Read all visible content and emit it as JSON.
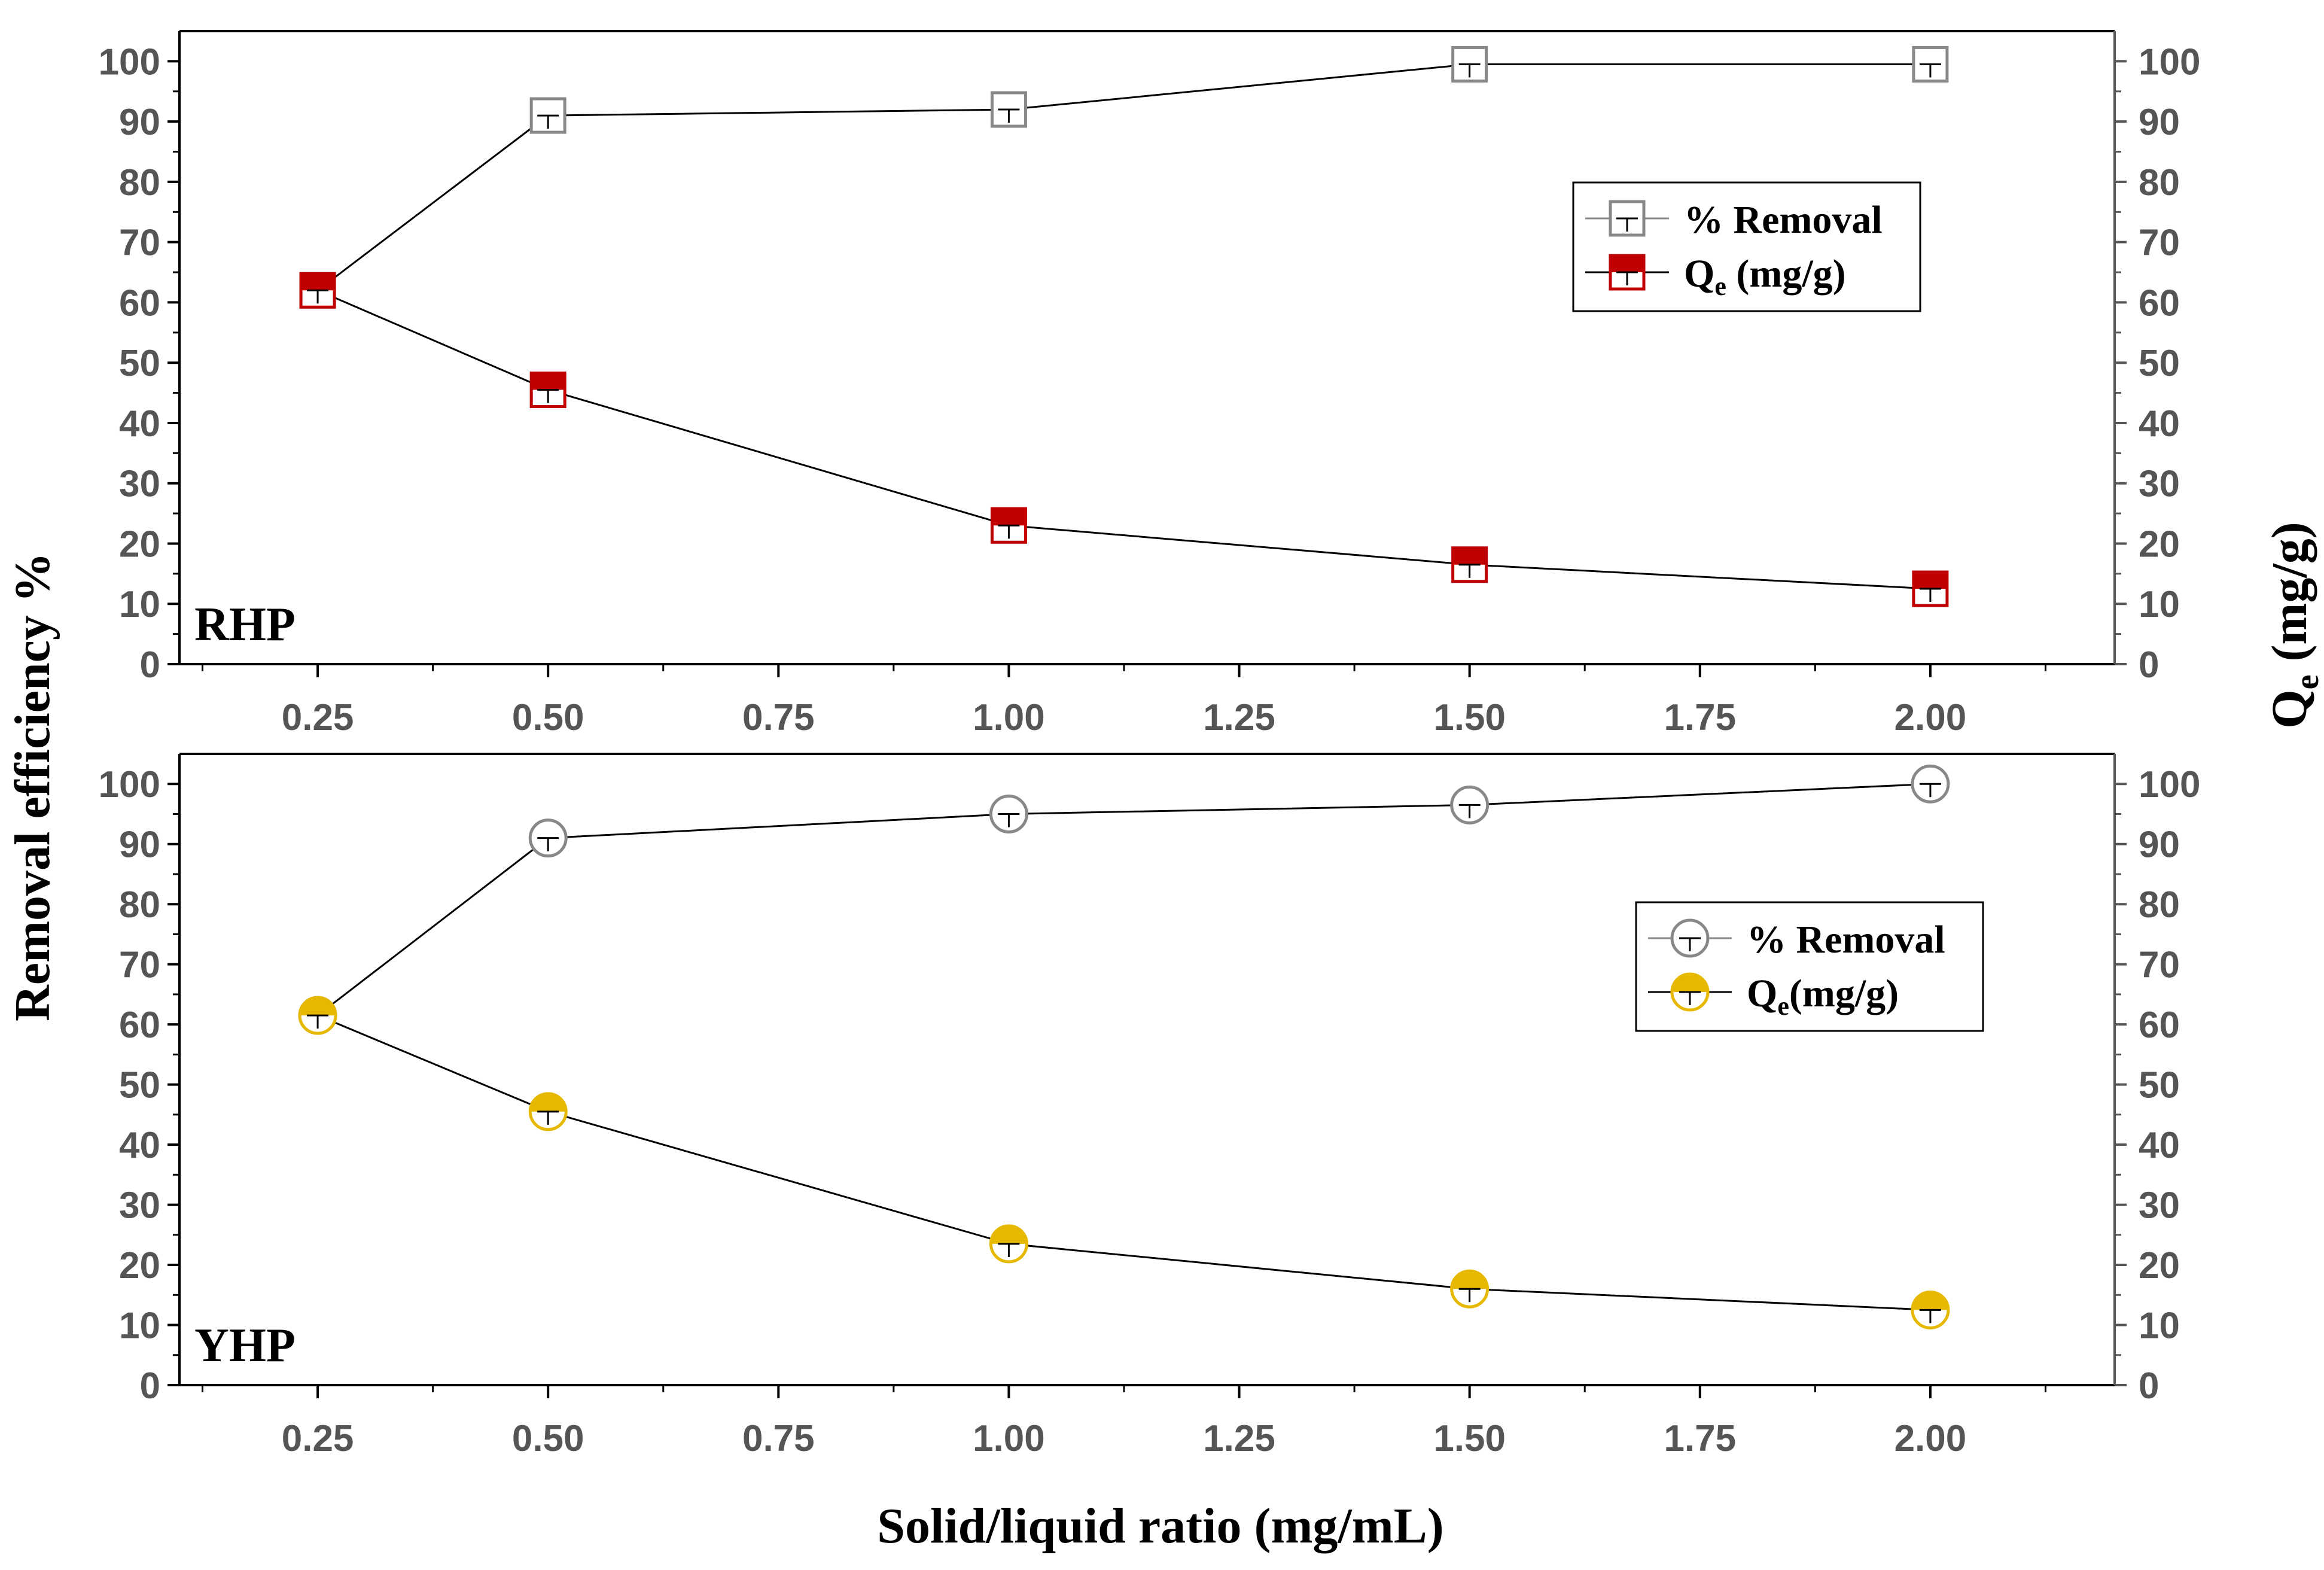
{
  "figure": {
    "ylabel_left": "Removal efficiency %",
    "ylabel_right_main": "Q",
    "ylabel_right_sub": "e",
    "ylabel_right_unit": "(mg/g)",
    "xlabel": "Solid/liquid ratio (mg/mL)"
  },
  "colors": {
    "axis": "#000000",
    "tick_text": "#555555",
    "removal_marker": "#888888",
    "rhp_fill": "#c00000",
    "yhp_fill": "#e6b800",
    "line": "#000000"
  },
  "chart_data": [
    {
      "type": "line",
      "panel_label": "RHP",
      "marker": "square",
      "x": [
        0.25,
        0.5,
        1.0,
        1.5,
        2.0
      ],
      "xlim": [
        0.1,
        2.2
      ],
      "xticks": [
        0.25,
        0.5,
        0.75,
        1.0,
        1.25,
        1.5,
        1.75,
        2.0
      ],
      "xtick_labels": [
        "0.25",
        "0.50",
        "0.75",
        "1.00",
        "1.25",
        "1.50",
        "1.75",
        "2.00"
      ],
      "ylim": [
        0,
        105
      ],
      "yticks": [
        0,
        10,
        20,
        30,
        40,
        50,
        60,
        70,
        80,
        90,
        100
      ],
      "ytick_labels": [
        "0",
        "10",
        "20",
        "30",
        "40",
        "50",
        "60",
        "70",
        "80",
        "90",
        "100"
      ],
      "series": [
        {
          "name": "% Removal",
          "axis": "left",
          "values": [
            62,
            91,
            92,
            99.5,
            99.5
          ]
        },
        {
          "name": "Q_e (mg/g)",
          "axis": "right",
          "values": [
            62,
            45.5,
            23,
            16.5,
            12.5
          ]
        }
      ],
      "legend": {
        "position": "top-right",
        "removal_label": "% Removal",
        "qe_main": "Q",
        "qe_sub": "e",
        "qe_unit": " (mg/g)"
      }
    },
    {
      "type": "line",
      "panel_label": "YHP",
      "marker": "circle",
      "x": [
        0.25,
        0.5,
        1.0,
        1.5,
        2.0
      ],
      "xlim": [
        0.1,
        2.2
      ],
      "xticks": [
        0.25,
        0.5,
        0.75,
        1.0,
        1.25,
        1.5,
        1.75,
        2.0
      ],
      "xtick_labels": [
        "0.25",
        "0.50",
        "0.75",
        "1.00",
        "1.25",
        "1.50",
        "1.75",
        "2.00"
      ],
      "ylim": [
        0,
        105
      ],
      "yticks": [
        0,
        10,
        20,
        30,
        40,
        50,
        60,
        70,
        80,
        90,
        100
      ],
      "ytick_labels": [
        "0",
        "10",
        "20",
        "30",
        "40",
        "50",
        "60",
        "70",
        "80",
        "90",
        "100"
      ],
      "series": [
        {
          "name": "% Removal",
          "axis": "left",
          "values": [
            61.5,
            91,
            95,
            96.5,
            100
          ]
        },
        {
          "name": "Q_e (mg/g)",
          "axis": "right",
          "values": [
            61.5,
            45.5,
            23.5,
            16,
            12.5
          ]
        }
      ],
      "legend": {
        "position": "right",
        "removal_label": "% Removal",
        "qe_main": "Q",
        "qe_sub": "e",
        "qe_unit": "(mg/g)"
      }
    }
  ]
}
